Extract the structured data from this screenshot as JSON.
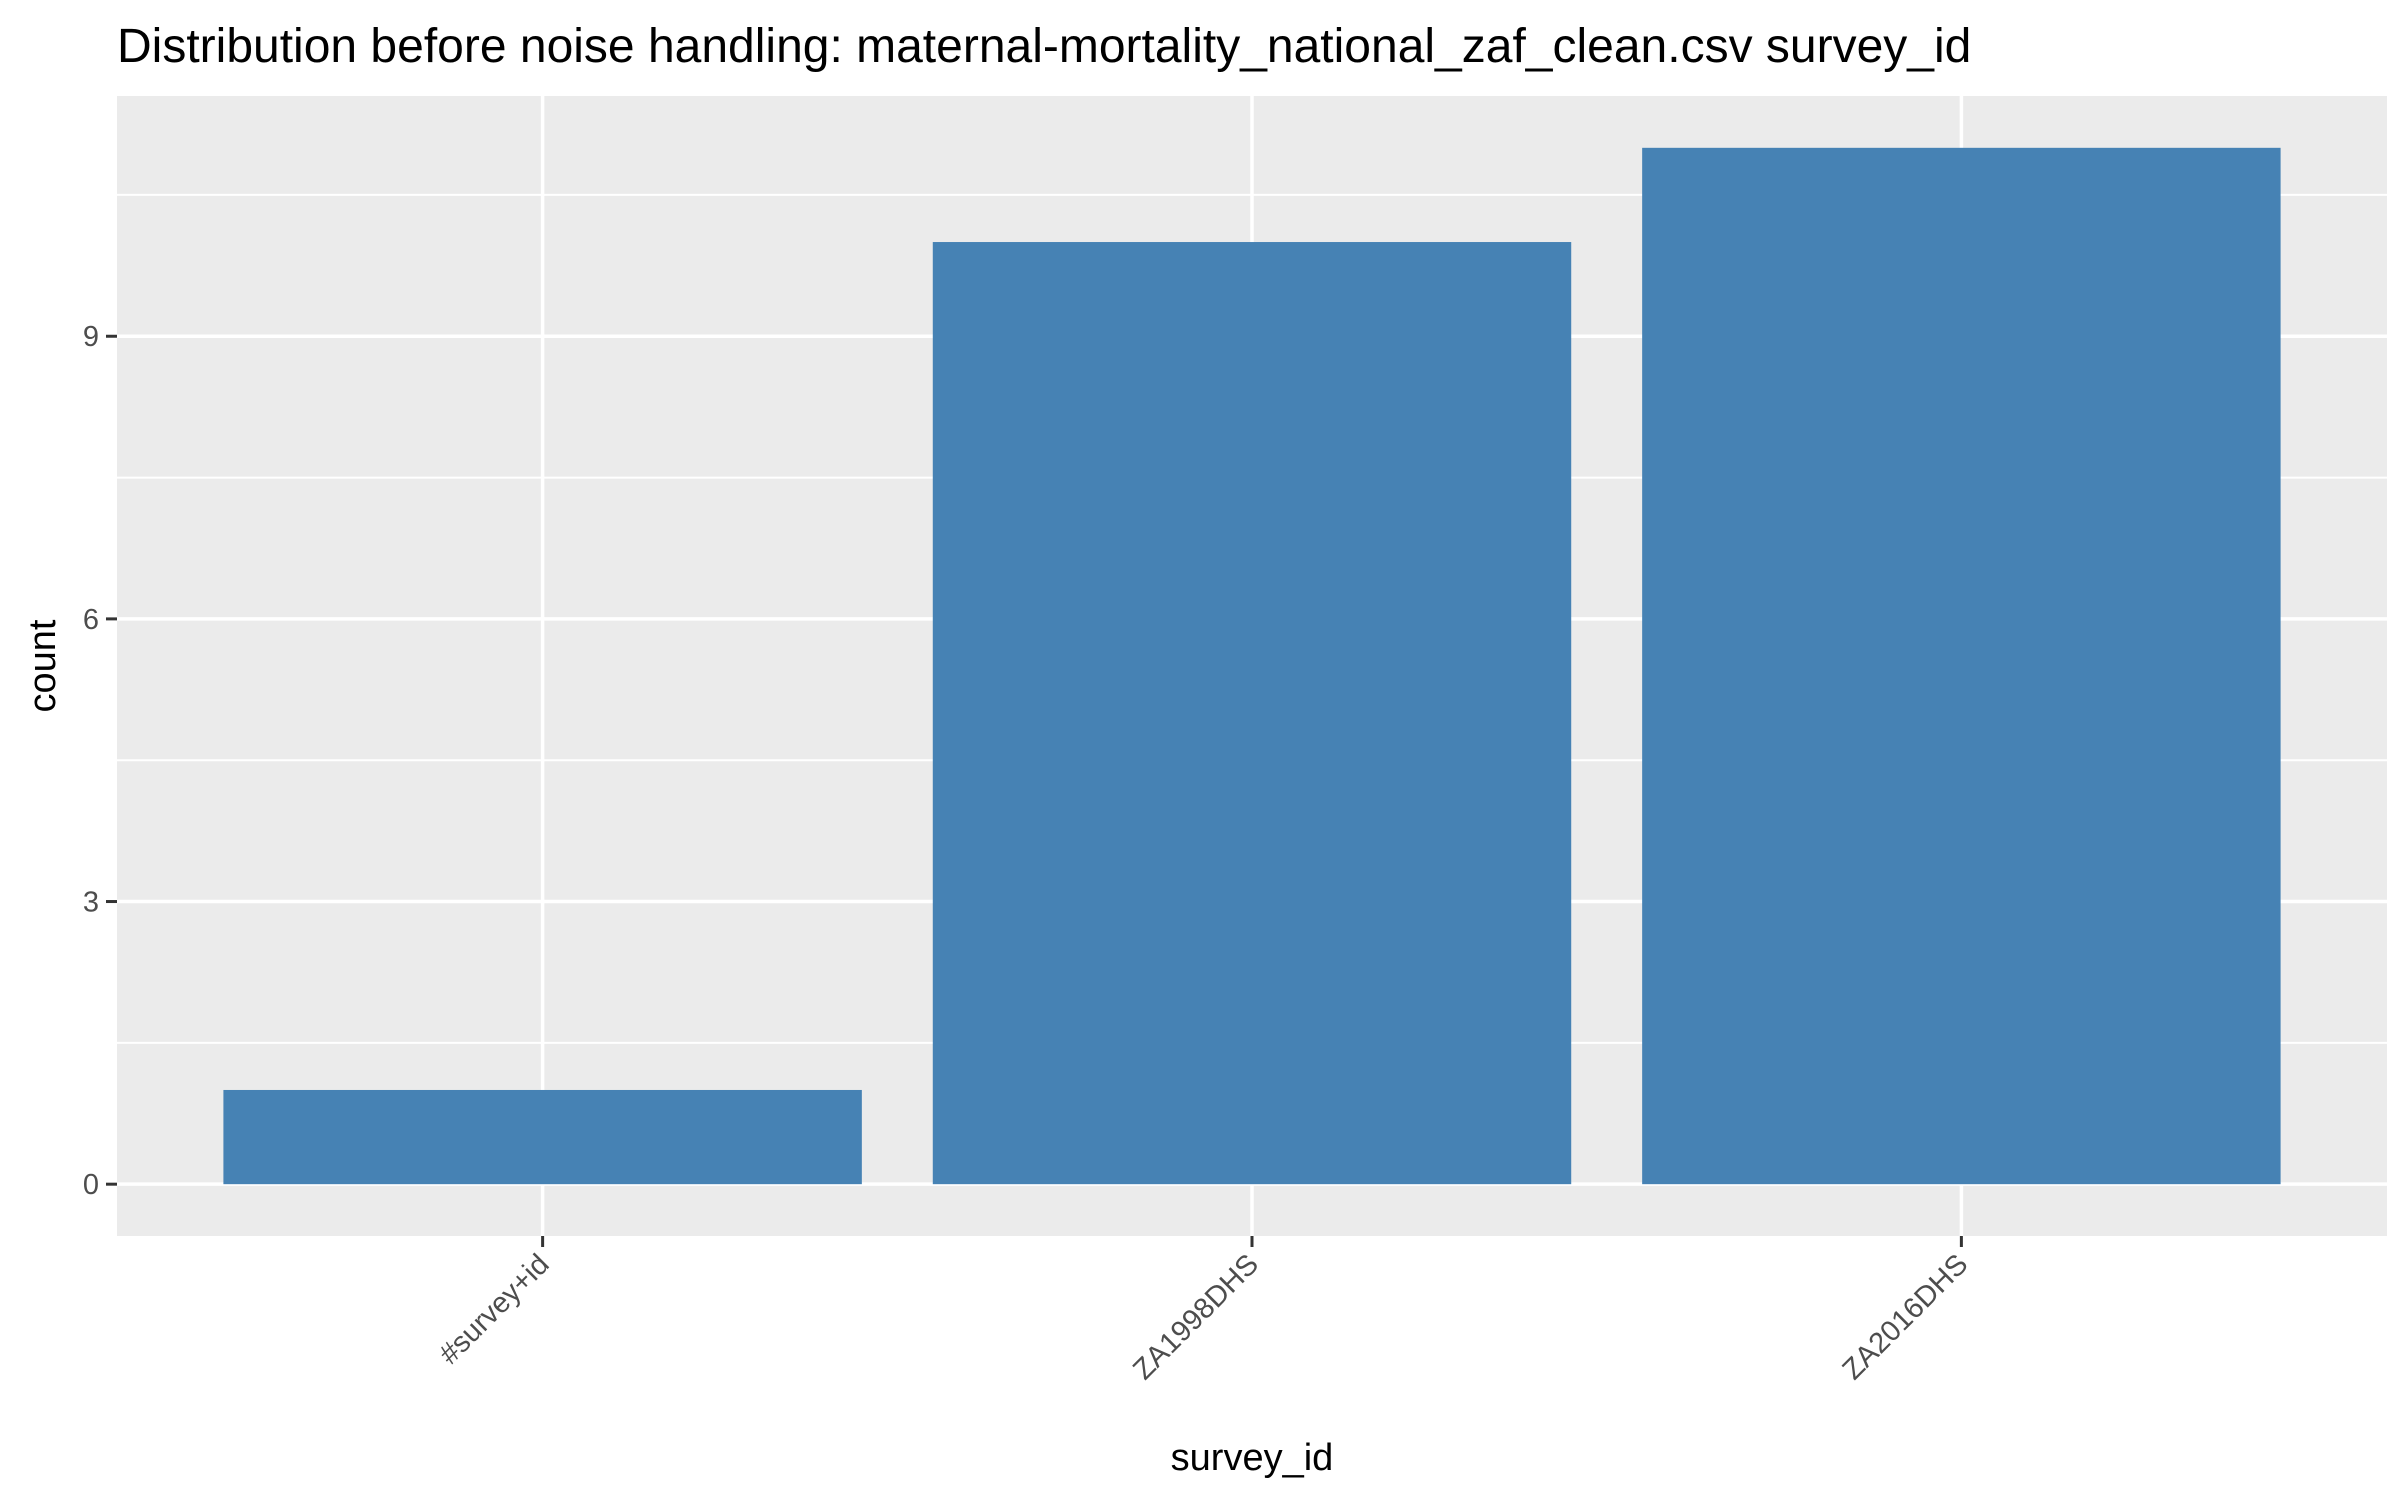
{
  "chart_data": {
    "type": "bar",
    "title": "Distribution before noise handling: maternal-mortality_national_zaf_clean.csv survey_id",
    "xlabel": "survey_id",
    "ylabel": "count",
    "categories": [
      "#survey+id",
      "ZA1998DHS",
      "ZA2016DHS"
    ],
    "values": [
      1,
      10,
      11
    ],
    "yticks": [
      0,
      3,
      6,
      9
    ],
    "ylim": [
      -0.55,
      11.55
    ],
    "grid": true,
    "legend": "none",
    "bar_color": "#4682B4",
    "panel_color": "#EBEBEB",
    "grid_color": "#FFFFFF",
    "tick_color": "#333333"
  }
}
